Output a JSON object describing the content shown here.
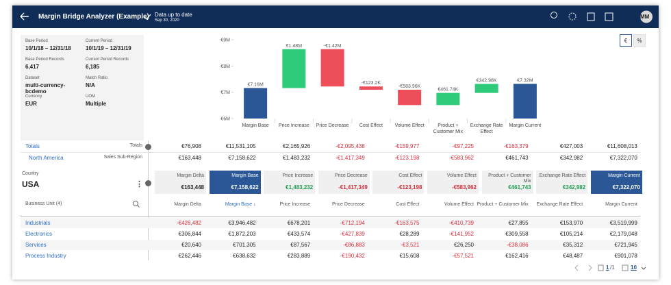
{
  "header": {
    "title": "Margin Bridge Analyzer (Example)",
    "status": "Data up to date",
    "date": "Sep 30, 2020",
    "avatar": "MM"
  },
  "info": [
    {
      "label": "Base Period",
      "value": "10/1/18 – 12/31/18"
    },
    {
      "label": "Current Period",
      "value": "10/1/19 – 12/31/19"
    },
    {
      "label": "Base Period Records",
      "value": "6,417"
    },
    {
      "label": "Current Period Records",
      "value": "6,185"
    },
    {
      "label": "Dataset",
      "value": "multi-currency-bcdemo"
    },
    {
      "label": "Match Ratio",
      "value": "N/A"
    },
    {
      "label": "Currency",
      "value": "EUR"
    },
    {
      "label": "UOM",
      "value": "Multiple"
    }
  ],
  "toggle": [
    "€",
    "%"
  ],
  "chart_data": {
    "type": "waterfall",
    "categories": [
      "Margin Base",
      "Price Increase",
      "Price Decrease",
      "Cost Effect",
      "Volume Effect",
      "Product + Customer Mix",
      "Exchange Rate Effect",
      "Margin Current"
    ],
    "values": [
      7.16,
      1.48,
      -1.42,
      -0.1232,
      -0.58396,
      0.46174,
      0.34298,
      7.32
    ],
    "value_labels": [
      "€7.16M",
      "€1.48M",
      "-€1.42M",
      "-€123.2K",
      "-€583.96K",
      "€461.74K",
      "€342.98K",
      "€7.32M"
    ],
    "colors": [
      "#2b5797",
      "#2ecc7a",
      "#ee4d5a",
      "#ee4d5a",
      "#ee4d5a",
      "#2ecc7a",
      "#2ecc7a",
      "#2b5797"
    ],
    "ylim": [
      6,
      9
    ],
    "yticks": [
      {
        "value": 6,
        "label": "€6M"
      },
      {
        "value": 7,
        "label": "€7M"
      },
      {
        "value": 8,
        "label": "€8M"
      },
      {
        "value": 9,
        "label": "€9M"
      }
    ]
  },
  "summary": [
    {
      "name": "Totals",
      "level": "Totals",
      "cells": [
        "€76,908",
        "€11,531,105",
        "€2,165,926",
        "-€2,095,438",
        "-€159,977",
        "-€97,225",
        "-€163,379",
        "€427,003",
        "€11,608,013"
      ]
    },
    {
      "name": "North America",
      "level": "Sales Sub-Region",
      "cells": [
        "€163,448",
        "€7,158,622",
        "€1,483,232",
        "-€1,417,349",
        "-€123,198",
        "-€583,962",
        "€461,743",
        "€342,982",
        "€7,322,070"
      ]
    }
  ],
  "country": {
    "label": "Country",
    "value": "USA"
  },
  "cards": [
    {
      "title": "Margin Delta",
      "value": "€163,448",
      "color": "#222222"
    },
    {
      "title": "Margin Base",
      "value": "€7,158,622",
      "color": "#2b5797"
    },
    {
      "title": "Price Increase",
      "value": "€1,483,232",
      "color": "#1e9e52"
    },
    {
      "title": "Price Decrease",
      "value": "-€1,417,349",
      "color": "#d62d3a"
    },
    {
      "title": "Cost Effect",
      "value": "-€123,198",
      "color": "#d62d3a"
    },
    {
      "title": "Volume Effect",
      "value": "-€583,962",
      "color": "#d62d3a"
    },
    {
      "title": "Product + Customer Mix",
      "value": "€461,743",
      "color": "#1e9e52"
    },
    {
      "title": "Exchange Rate Effect",
      "value": "€342,982",
      "color": "#1e9e52"
    },
    {
      "title": "Margin Current",
      "value": "€7,322,070",
      "color": "#2b5797"
    }
  ],
  "table": {
    "first_header": "Business Unit (4)",
    "headers": [
      "Margin Delta",
      "Margin Base ↓",
      "Price Increase",
      "Price Decrease",
      "Cost Effect",
      "Volume Effect",
      "Product + Customer Mix",
      "Exchange Rate Effect",
      "Margin Current"
    ],
    "rows": [
      [
        "Industrials",
        "-€426,482",
        "€3,946,482",
        "€678,201",
        "-€712,194",
        "-€163,575",
        "-€410,739",
        "€27,855",
        "€153,970",
        "€3,519,999"
      ],
      [
        "Electronics",
        "€306,844",
        "€1,872,203",
        "€433,574",
        "-€427,839",
        "€28,289",
        "-€141,952",
        "€309,558",
        "€105,214",
        "€2,179,048"
      ],
      [
        "Services",
        "€20,640",
        "€701,305",
        "€87,567",
        "-€86,883",
        "-€3,521",
        "€26,250",
        "-€38,086",
        "€35,312",
        "€721,945"
      ],
      [
        "Process Industry",
        "€262,446",
        "€638,632",
        "€283,889",
        "-€190,432",
        "€15,608",
        "-€57,521",
        "€162,416",
        "€48,487",
        "€901,078"
      ]
    ]
  },
  "pagination": {
    "page": "1",
    "total": "/1",
    "size": "10"
  }
}
